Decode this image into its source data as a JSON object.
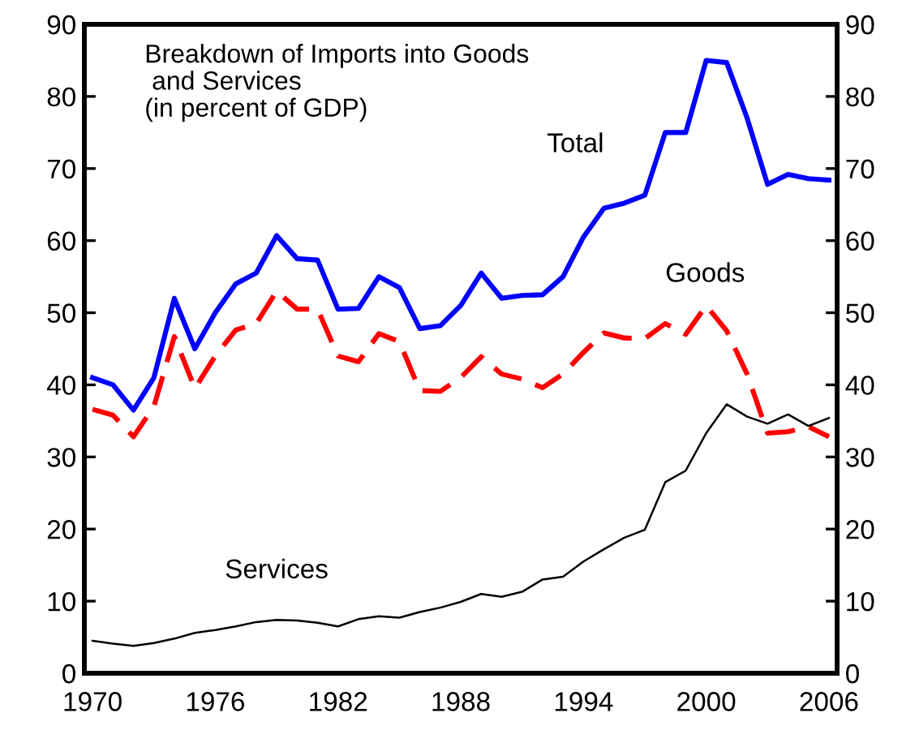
{
  "chart_data": {
    "type": "line",
    "title": "Breakdown of Imports into Goods\n and Services\n(in percent of GDP)",
    "x": [
      1970,
      1971,
      1972,
      1973,
      1974,
      1975,
      1976,
      1977,
      1978,
      1979,
      1980,
      1981,
      1982,
      1983,
      1984,
      1985,
      1986,
      1987,
      1988,
      1989,
      1990,
      1991,
      1992,
      1993,
      1994,
      1995,
      1996,
      1997,
      1998,
      1999,
      2000,
      2001,
      2002,
      2003,
      2004,
      2005,
      2006
    ],
    "series": [
      {
        "name": "Total",
        "color": "#0000ff",
        "line_style": "solid",
        "values": [
          41,
          40,
          36.5,
          41,
          52,
          45,
          50,
          54,
          55.5,
          60.7,
          57.5,
          57.3,
          50.5,
          50.6,
          55,
          53.5,
          47.8,
          48.2,
          51,
          55.5,
          52,
          52.4,
          52.5,
          55,
          60.5,
          64.5,
          65.2,
          66.3,
          75,
          75,
          85,
          84.7,
          77,
          67.8,
          69.2,
          68.6,
          68.4
        ]
      },
      {
        "name": "Goods",
        "color": "#ff0000",
        "line_style": "dashed",
        "values": [
          36.6,
          35.8,
          32.8,
          37,
          46.7,
          39.5,
          44,
          47.6,
          48.5,
          53,
          50.5,
          50.5,
          44,
          43.2,
          47.1,
          46,
          39.2,
          39.1,
          41,
          43.9,
          41.5,
          40.8,
          39.6,
          41.5,
          44.5,
          47.2,
          46.5,
          46.4,
          48.5,
          47,
          51,
          47.5,
          41.5,
          33.3,
          33.5,
          34.2,
          32.8
        ]
      },
      {
        "name": "Services",
        "color": "#000000",
        "line_style": "solid",
        "values": [
          4.5,
          4.1,
          3.8,
          4.2,
          4.8,
          5.6,
          6,
          6.5,
          7.1,
          7.4,
          7.3,
          7,
          6.5,
          7.5,
          7.9,
          7.7,
          8.5,
          9.1,
          9.9,
          11,
          10.6,
          11.3,
          13,
          13.4,
          15.5,
          17.2,
          18.8,
          19.9,
          26.5,
          28.1,
          33.3,
          37.3,
          35.6,
          34.6,
          35.9,
          34.3,
          35.4
        ]
      }
    ],
    "xlim": [
      1969.6,
      2006.4
    ],
    "xticks": [
      1970,
      1976,
      1982,
      1988,
      1994,
      2000,
      2006
    ],
    "ylim": [
      0,
      90
    ],
    "yticks": [
      0,
      10,
      20,
      30,
      40,
      50,
      60,
      70,
      80,
      90
    ],
    "y2lim": [
      0,
      90
    ],
    "y2ticks": [
      0,
      10,
      20,
      30,
      40,
      50,
      60,
      70,
      80,
      90
    ],
    "grid": false,
    "legend": false,
    "marker": "none"
  }
}
